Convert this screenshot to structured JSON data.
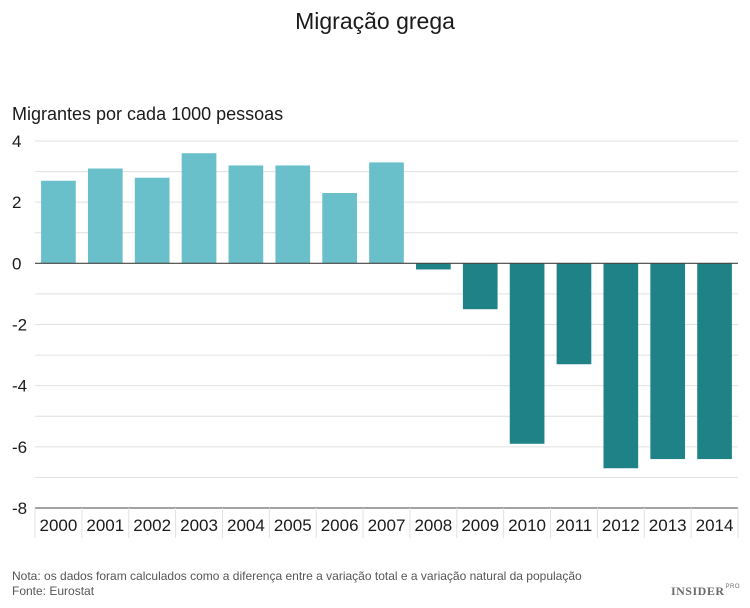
{
  "chart_data": {
    "type": "bar",
    "title": "Migração grega",
    "ylabel": "Migrantes por cada 1000 pessoas",
    "xlabel": "",
    "categories": [
      "2000",
      "2001",
      "2002",
      "2003",
      "2004",
      "2005",
      "2006",
      "2007",
      "2008",
      "2009",
      "2010",
      "2011",
      "2012",
      "2013",
      "2014"
    ],
    "values": [
      2.7,
      3.1,
      2.8,
      3.6,
      3.2,
      3.2,
      2.3,
      3.3,
      -0.2,
      -1.5,
      -5.9,
      -3.3,
      -6.7,
      -6.4,
      -6.4
    ],
    "ylim": [
      -8,
      4
    ],
    "yticks": [
      4,
      2,
      0,
      -2,
      -4,
      -6,
      -8
    ],
    "grid": true,
    "colors": {
      "positive": "#69bfca",
      "negative": "#1f8287",
      "grid": "#e0e0e0",
      "zero_line": "#444444"
    }
  },
  "footer": {
    "note": "Nota: os dados foram calculados como a diferença entre a variação total e a variação natural da população",
    "source": "Fonte: Eurostat",
    "brand": "INSIDER",
    "brand_suffix": "PRO"
  }
}
